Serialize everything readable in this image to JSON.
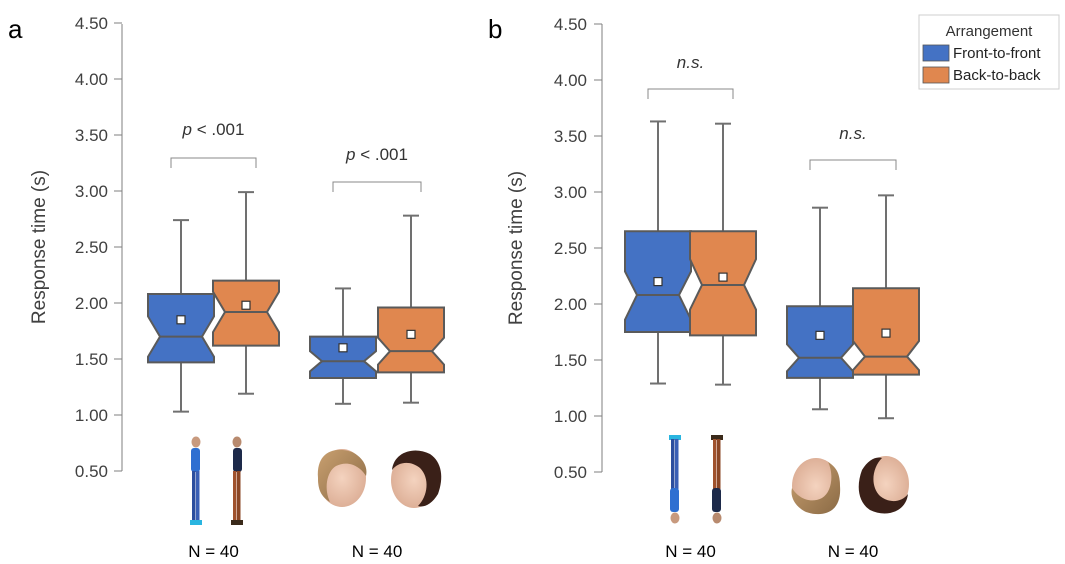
{
  "figure": {
    "y_axis_label": "Response time (s)",
    "legend": {
      "title": "Arrangement",
      "items": [
        "Front-to-front",
        "Back-to-back"
      ],
      "placement": "top-right"
    },
    "colors": {
      "front_to_front": "#4472C4",
      "back_to_back": "#E0874F",
      "whisker": "#707070"
    }
  },
  "chart_data": [
    {
      "panel_label": "a",
      "type": "box",
      "ylabel": "Response time (s)",
      "ylim": [
        0.5,
        4.5
      ],
      "yticks": [
        "0.50",
        "1.00",
        "1.50",
        "2.00",
        "2.50",
        "3.00",
        "3.50",
        "4.00",
        "4.50"
      ],
      "groups": [
        {
          "stimulus": "upright bodies",
          "n_label": "N = 40",
          "annotation": "p < .001",
          "boxes": [
            {
              "series": "Front-to-front",
              "whisker_low": 1.03,
              "q1": 1.47,
              "median": 1.7,
              "q3": 2.08,
              "whisker_high": 2.74,
              "mean": 1.85,
              "notch_low": 1.52,
              "notch_high": 1.88
            },
            {
              "series": "Back-to-back",
              "whisker_low": 1.19,
              "q1": 1.62,
              "median": 1.92,
              "q3": 2.2,
              "whisker_high": 2.99,
              "mean": 1.98,
              "notch_low": 1.74,
              "notch_high": 2.1
            }
          ]
        },
        {
          "stimulus": "upright faces",
          "n_label": "N = 40",
          "annotation": "p < .001",
          "boxes": [
            {
              "series": "Front-to-front",
              "whisker_low": 1.1,
              "q1": 1.33,
              "median": 1.48,
              "q3": 1.7,
              "whisker_high": 2.13,
              "mean": 1.6,
              "notch_low": 1.39,
              "notch_high": 1.57
            },
            {
              "series": "Back-to-back",
              "whisker_low": 1.11,
              "q1": 1.38,
              "median": 1.57,
              "q3": 1.96,
              "whisker_high": 2.78,
              "mean": 1.72,
              "notch_low": 1.45,
              "notch_high": 1.69
            }
          ]
        }
      ]
    },
    {
      "panel_label": "b",
      "type": "box",
      "ylabel": "Response time (s)",
      "ylim": [
        0.5,
        4.5
      ],
      "yticks": [
        "0.50",
        "1.00",
        "1.50",
        "2.00",
        "2.50",
        "3.00",
        "3.50",
        "4.00",
        "4.50"
      ],
      "groups": [
        {
          "stimulus": "inverted bodies",
          "n_label": "N = 40",
          "annotation": "n.s.",
          "boxes": [
            {
              "series": "Front-to-front",
              "whisker_low": 1.29,
              "q1": 1.75,
              "median": 2.08,
              "q3": 2.65,
              "whisker_high": 3.63,
              "mean": 2.2,
              "notch_low": 1.86,
              "notch_high": 2.29
            },
            {
              "series": "Back-to-back",
              "whisker_low": 1.28,
              "q1": 1.72,
              "median": 2.17,
              "q3": 2.65,
              "whisker_high": 3.61,
              "mean": 2.24,
              "notch_low": 1.95,
              "notch_high": 2.4
            }
          ]
        },
        {
          "stimulus": "inverted faces",
          "n_label": "N = 40",
          "annotation": "n.s.",
          "boxes": [
            {
              "series": "Front-to-front",
              "whisker_low": 1.06,
              "q1": 1.34,
              "median": 1.52,
              "q3": 1.98,
              "whisker_high": 2.86,
              "mean": 1.72,
              "notch_low": 1.4,
              "notch_high": 1.64
            },
            {
              "series": "Back-to-back",
              "whisker_low": 0.98,
              "q1": 1.37,
              "median": 1.53,
              "q3": 2.14,
              "whisker_high": 2.97,
              "mean": 1.74,
              "notch_low": 1.41,
              "notch_high": 1.67
            }
          ]
        }
      ]
    }
  ]
}
